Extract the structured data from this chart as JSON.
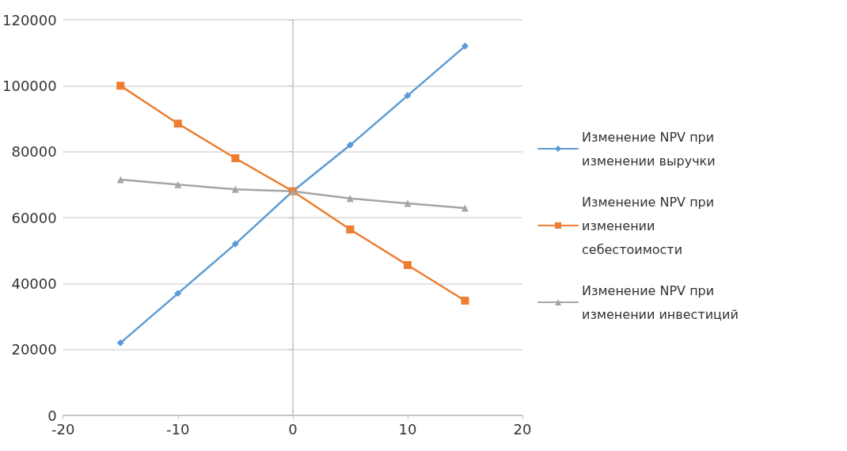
{
  "chart_data": {
    "type": "line",
    "x": [
      -15,
      -10,
      -5,
      0,
      5,
      10,
      15
    ],
    "series": [
      {
        "name": "Изменение NPV при изменении выручки",
        "color": "#5b9bd5",
        "marker": "diamond",
        "values": [
          22000,
          37000,
          52000,
          68000,
          82000,
          97000,
          112000
        ]
      },
      {
        "name": "Изменение NPV при изменении себестоимости",
        "color": "#ed7d31",
        "marker": "square",
        "values": [
          100000,
          88500,
          78000,
          68000,
          56400,
          45600,
          34800
        ]
      },
      {
        "name": "Изменение NPV при изменении инвестиций",
        "color": "#a5a5a5",
        "marker": "triangle",
        "values": [
          71500,
          70000,
          68600,
          68000,
          65800,
          64300,
          62900
        ]
      }
    ],
    "xlim": [
      -20,
      20
    ],
    "xticks": [
      -20,
      -10,
      0,
      10,
      20
    ],
    "ylim": [
      0,
      120000
    ],
    "yticks": [
      0,
      20000,
      40000,
      60000,
      80000,
      100000,
      120000
    ],
    "grid": "y",
    "legend": "right",
    "line_style": "solid"
  }
}
